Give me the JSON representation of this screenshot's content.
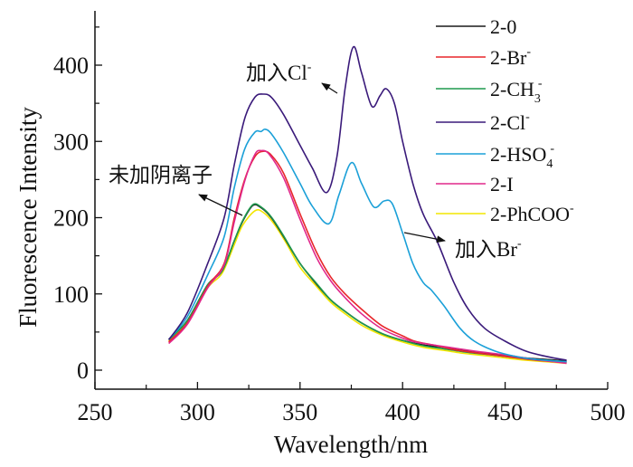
{
  "chart_data": {
    "type": "line",
    "title": "",
    "xlabel": "Wavelength/nm",
    "ylabel": "Fluorescence Intensity",
    "xlim": [
      250,
      500
    ],
    "ylim": [
      -25,
      470
    ],
    "xticks": [
      250,
      300,
      350,
      400,
      450,
      500
    ],
    "xminor": [
      275,
      325,
      375,
      425,
      475
    ],
    "yticks": [
      0,
      100,
      200,
      300,
      400
    ],
    "yminor": [
      50,
      150,
      250,
      350,
      450
    ],
    "grid": false,
    "legend_position": "top-right",
    "series": [
      {
        "name": "2-0",
        "label_main": "2-0",
        "label_sub": "",
        "label_sup": "",
        "color": "#1a1a1a",
        "points": [
          [
            286,
            40
          ],
          [
            295,
            65
          ],
          [
            305,
            112
          ],
          [
            312,
            130
          ],
          [
            318,
            170
          ],
          [
            322,
            195
          ],
          [
            327,
            216
          ],
          [
            331,
            213
          ],
          [
            336,
            200
          ],
          [
            342,
            175
          ],
          [
            350,
            140
          ],
          [
            358,
            113
          ],
          [
            365,
            92
          ],
          [
            372,
            77
          ],
          [
            380,
            62
          ],
          [
            390,
            48
          ],
          [
            400,
            39
          ],
          [
            410,
            33
          ],
          [
            420,
            30
          ],
          [
            430,
            26
          ],
          [
            440,
            22
          ],
          [
            450,
            19
          ],
          [
            460,
            16
          ],
          [
            470,
            14
          ],
          [
            480,
            12
          ]
        ]
      },
      {
        "name": "2-Br-",
        "label_main": "2-Br",
        "label_sub": "",
        "label_sup": "-",
        "color": "#e8262a",
        "points": [
          [
            286,
            37
          ],
          [
            295,
            62
          ],
          [
            305,
            110
          ],
          [
            313,
            140
          ],
          [
            318,
            200
          ],
          [
            323,
            250
          ],
          [
            328,
            280
          ],
          [
            332,
            287
          ],
          [
            336,
            282
          ],
          [
            342,
            258
          ],
          [
            350,
            205
          ],
          [
            358,
            155
          ],
          [
            365,
            122
          ],
          [
            372,
            100
          ],
          [
            380,
            80
          ],
          [
            390,
            58
          ],
          [
            400,
            45
          ],
          [
            406,
            38
          ],
          [
            415,
            33
          ],
          [
            425,
            27
          ],
          [
            435,
            23
          ],
          [
            450,
            18
          ],
          [
            465,
            13
          ],
          [
            480,
            10
          ]
        ]
      },
      {
        "name": "2-CH3-",
        "label_main": "2-CH",
        "label_sub": "3",
        "label_sup": "-",
        "color": "#1f9a4e",
        "points": [
          [
            286,
            40
          ],
          [
            295,
            65
          ],
          [
            305,
            112
          ],
          [
            312,
            130
          ],
          [
            318,
            170
          ],
          [
            322,
            196
          ],
          [
            327,
            217
          ],
          [
            331,
            214
          ],
          [
            336,
            201
          ],
          [
            342,
            176
          ],
          [
            350,
            140
          ],
          [
            358,
            114
          ],
          [
            365,
            92
          ],
          [
            372,
            77
          ],
          [
            380,
            62
          ],
          [
            390,
            48
          ],
          [
            400,
            39
          ],
          [
            410,
            32
          ],
          [
            420,
            28
          ],
          [
            430,
            24
          ],
          [
            440,
            21
          ],
          [
            450,
            18
          ],
          [
            460,
            15
          ],
          [
            470,
            13
          ],
          [
            480,
            11
          ]
        ]
      },
      {
        "name": "2-Cl-",
        "label_main": "2-Cl",
        "label_sub": "",
        "label_sup": "-",
        "color": "#3a1a7a",
        "points": [
          [
            286,
            40
          ],
          [
            295,
            75
          ],
          [
            305,
            140
          ],
          [
            313,
            200
          ],
          [
            318,
            270
          ],
          [
            323,
            330
          ],
          [
            328,
            358
          ],
          [
            332,
            362
          ],
          [
            336,
            358
          ],
          [
            342,
            335
          ],
          [
            350,
            295
          ],
          [
            356,
            265
          ],
          [
            363,
            233
          ],
          [
            368,
            280
          ],
          [
            372,
            370
          ],
          [
            376,
            424
          ],
          [
            380,
            390
          ],
          [
            385,
            346
          ],
          [
            389,
            360
          ],
          [
            392,
            369
          ],
          [
            396,
            350
          ],
          [
            400,
            300
          ],
          [
            405,
            245
          ],
          [
            410,
            205
          ],
          [
            417,
            168
          ],
          [
            425,
            115
          ],
          [
            432,
            80
          ],
          [
            440,
            55
          ],
          [
            450,
            38
          ],
          [
            460,
            25
          ],
          [
            470,
            18
          ],
          [
            480,
            13
          ]
        ]
      },
      {
        "name": "2-HSO4-",
        "label_main": "2-HSO",
        "label_sub": "4",
        "label_sup": "-",
        "color": "#1ba0d8",
        "points": [
          [
            286,
            40
          ],
          [
            295,
            70
          ],
          [
            305,
            125
          ],
          [
            313,
            175
          ],
          [
            318,
            240
          ],
          [
            323,
            290
          ],
          [
            328,
            312
          ],
          [
            331,
            313
          ],
          [
            333,
            316
          ],
          [
            336,
            310
          ],
          [
            342,
            285
          ],
          [
            350,
            245
          ],
          [
            356,
            215
          ],
          [
            364,
            192
          ],
          [
            369,
            230
          ],
          [
            375,
            272
          ],
          [
            380,
            245
          ],
          [
            386,
            214
          ],
          [
            391,
            222
          ],
          [
            395,
            218
          ],
          [
            400,
            180
          ],
          [
            405,
            140
          ],
          [
            410,
            115
          ],
          [
            414,
            105
          ],
          [
            420,
            85
          ],
          [
            428,
            55
          ],
          [
            435,
            38
          ],
          [
            445,
            25
          ],
          [
            455,
            18
          ],
          [
            465,
            14
          ],
          [
            480,
            11
          ]
        ]
      },
      {
        "name": "2-I",
        "label_main": "2-I",
        "label_sub": "",
        "label_sup": "",
        "color": "#e0288c",
        "points": [
          [
            286,
            35
          ],
          [
            295,
            60
          ],
          [
            305,
            108
          ],
          [
            313,
            138
          ],
          [
            318,
            195
          ],
          [
            323,
            248
          ],
          [
            328,
            283
          ],
          [
            331,
            288
          ],
          [
            335,
            283
          ],
          [
            342,
            252
          ],
          [
            350,
            198
          ],
          [
            358,
            148
          ],
          [
            365,
            117
          ],
          [
            372,
            95
          ],
          [
            380,
            74
          ],
          [
            390,
            54
          ],
          [
            400,
            42
          ],
          [
            406,
            37
          ],
          [
            415,
            33
          ],
          [
            425,
            29
          ],
          [
            435,
            25
          ],
          [
            450,
            20
          ],
          [
            465,
            14
          ],
          [
            480,
            9
          ]
        ]
      },
      {
        "name": "2-PhCOO-",
        "label_main": "2-PhCOO",
        "label_sub": "",
        "label_sup": "-",
        "color": "#f2e600",
        "points": [
          [
            286,
            38
          ],
          [
            295,
            62
          ],
          [
            305,
            108
          ],
          [
            312,
            127
          ],
          [
            318,
            165
          ],
          [
            322,
            190
          ],
          [
            328,
            209
          ],
          [
            332,
            207
          ],
          [
            337,
            193
          ],
          [
            343,
            168
          ],
          [
            350,
            135
          ],
          [
            358,
            110
          ],
          [
            365,
            89
          ],
          [
            372,
            74
          ],
          [
            380,
            59
          ],
          [
            390,
            46
          ],
          [
            400,
            37
          ],
          [
            410,
            30
          ],
          [
            420,
            26
          ],
          [
            430,
            22
          ],
          [
            440,
            19
          ],
          [
            450,
            16
          ],
          [
            460,
            13
          ],
          [
            470,
            11
          ],
          [
            480,
            9
          ]
        ]
      }
    ],
    "annotations": [
      {
        "text": "加入Cl",
        "sup": "-",
        "target": [
          376,
          424
        ]
      },
      {
        "text": "未加阴离子",
        "sup": "",
        "target": [
          327,
          216
        ]
      },
      {
        "text": "加入Br",
        "sup": "-",
        "target": [
          414,
          105
        ]
      }
    ]
  }
}
